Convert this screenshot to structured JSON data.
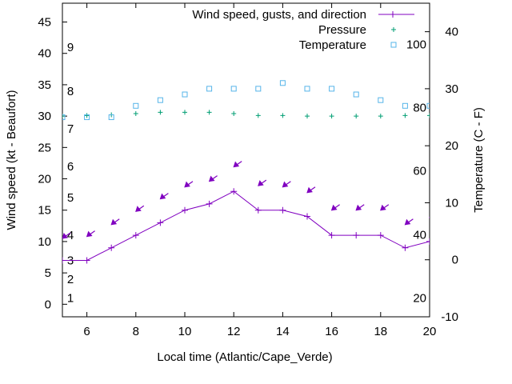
{
  "chart_data": {
    "type": "line",
    "xlabel": "Local time (Atlantic/Cape_Verde)",
    "ylabel": "Wind speed (kt - Beaufort)",
    "y2label": "Temperature (C - F)",
    "xlim": [
      5,
      20
    ],
    "ylim": [
      -2,
      48
    ],
    "y2lim": [
      -10,
      45
    ],
    "x_ticks": [
      6,
      8,
      10,
      12,
      14,
      16,
      18,
      20
    ],
    "y_ticks": [
      0,
      5,
      10,
      15,
      20,
      25,
      30,
      35,
      40,
      45
    ],
    "y2_ticks": [
      -10,
      0,
      10,
      20,
      30,
      40
    ],
    "beaufort_labels": [
      {
        "text": "1",
        "y": 1
      },
      {
        "text": "2",
        "y": 4
      },
      {
        "text": "3",
        "y": 7
      },
      {
        "text": "4",
        "y": 11
      },
      {
        "text": "5",
        "y": 17
      },
      {
        "text": "6",
        "y": 22
      },
      {
        "text": "7",
        "y": 28
      },
      {
        "text": "8",
        "y": 34
      },
      {
        "text": "9",
        "y": 41
      }
    ],
    "fahrenheit_labels": [
      {
        "text": "20",
        "c": -6.7
      },
      {
        "text": "40",
        "c": 4.4
      },
      {
        "text": "60",
        "c": 15.6
      },
      {
        "text": "80",
        "c": 26.7
      },
      {
        "text": "100",
        "c": 37.8
      }
    ],
    "legend_position": "top-right",
    "series": [
      {
        "name": "Wind speed, gusts, and direction",
        "axis": "y",
        "color": "#8000c0",
        "x": [
          5,
          6,
          7,
          8,
          9,
          10,
          11,
          12,
          13,
          14,
          15,
          16,
          17,
          18,
          19,
          20
        ],
        "values": [
          7,
          7,
          9,
          11,
          13,
          15,
          16,
          18,
          15,
          15,
          14,
          11,
          11,
          11,
          9,
          10
        ],
        "gust_x": [
          5,
          6,
          7,
          8,
          9,
          10,
          11,
          12,
          13,
          14,
          15,
          16,
          17,
          18,
          19,
          20
        ],
        "gust_values": [
          10.5,
          10.8,
          12.7,
          14.8,
          16.8,
          18.7,
          19.6,
          21.9,
          18.9,
          18.7,
          17.8,
          15.0,
          15.0,
          15.0,
          12.7,
          13.8
        ]
      },
      {
        "name": "Pressure",
        "axis": "y",
        "color": "#009e73",
        "x": [
          5,
          6,
          7,
          8,
          9,
          10,
          11,
          12,
          13,
          14,
          15,
          16,
          17,
          18,
          19,
          20
        ],
        "values": [
          30,
          30.1,
          30.2,
          30.4,
          30.6,
          30.6,
          30.6,
          30.4,
          30.1,
          30.1,
          30.0,
          30.0,
          30.0,
          30.0,
          30.1,
          30.1
        ]
      },
      {
        "name": "Temperature",
        "axis": "y2",
        "color": "#56b4e9",
        "x": [
          5,
          6,
          7,
          8,
          9,
          10,
          11,
          12,
          13,
          14,
          15,
          16,
          17,
          18,
          19,
          20
        ],
        "values": [
          25,
          25,
          25,
          27,
          28,
          29,
          30,
          30,
          30,
          31,
          30,
          30,
          29,
          28,
          27,
          27
        ]
      }
    ]
  }
}
